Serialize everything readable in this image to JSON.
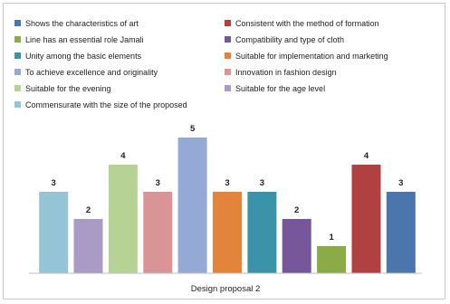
{
  "chart_data": {
    "type": "bar",
    "title": "",
    "xlabel": "Design proposal 2",
    "ylabel": "",
    "ylim": [
      0,
      5
    ],
    "grid": false,
    "legend_position": "top",
    "series": [
      {
        "name": "Commensurate with the size of the proposed",
        "values": [
          3
        ],
        "color": "#93c5d6"
      },
      {
        "name": "Suitable for the age level",
        "values": [
          2
        ],
        "color": "#a99bc6"
      },
      {
        "name": "Suitable for the evening",
        "values": [
          4
        ],
        "color": "#b6d395"
      },
      {
        "name": "Innovation in fashion design",
        "values": [
          3
        ],
        "color": "#d99595"
      },
      {
        "name": "To achieve excellence and originality",
        "values": [
          5
        ],
        "color": "#94a9d3"
      },
      {
        "name": "Suitable for implementation and marketing",
        "values": [
          3
        ],
        "color": "#e3843b"
      },
      {
        "name": "Unity among the basic elements",
        "values": [
          3
        ],
        "color": "#3b93a9"
      },
      {
        "name": "Compatibility and type of cloth",
        "values": [
          2
        ],
        "color": "#75579a"
      },
      {
        "name": "Line has an essential role Jamali",
        "values": [
          1
        ],
        "color": "#8aab47"
      },
      {
        "name": "Consistent with the method of formation",
        "values": [
          4
        ],
        "color": "#b04140"
      },
      {
        "name": "Shows the characteristics of art",
        "values": [
          3
        ],
        "color": "#4a75ad"
      }
    ]
  },
  "legend": {
    "items": [
      {
        "label": "Shows the characteristics of art",
        "color": "#4a75ad"
      },
      {
        "label": "Consistent with the method of formation",
        "color": "#b04140"
      },
      {
        "label": "Line has an essential role Jamali",
        "color": "#8aab47"
      },
      {
        "label": "Compatibility and type of cloth",
        "color": "#75579a"
      },
      {
        "label": "Unity among the basic elements",
        "color": "#3b93a9"
      },
      {
        "label": "Suitable for implementation and marketing",
        "color": "#e3843b"
      },
      {
        "label": "To achieve excellence and originality",
        "color": "#94a9d3"
      },
      {
        "label": "Innovation in fashion design",
        "color": "#d99595"
      },
      {
        "label": "Suitable for the evening",
        "color": "#b6d395"
      },
      {
        "label": "Suitable for the age level",
        "color": "#a99bc6"
      },
      {
        "label": "Commensurate with the size of the proposed",
        "color": "#93c5d6"
      }
    ]
  }
}
